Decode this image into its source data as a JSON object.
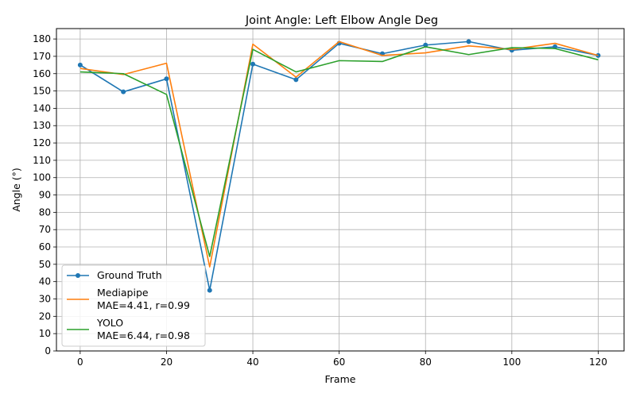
{
  "chart_data": {
    "type": "line",
    "title": "Joint Angle: Left Elbow Angle Deg",
    "xlabel": "Frame",
    "ylabel": "Angle (°)",
    "xlim": [
      -5.5,
      126
    ],
    "ylim": [
      0,
      186
    ],
    "xticks": [
      0,
      20,
      40,
      60,
      80,
      100,
      120
    ],
    "yticks": [
      0,
      10,
      20,
      30,
      40,
      50,
      60,
      70,
      80,
      90,
      100,
      110,
      120,
      130,
      140,
      150,
      160,
      170,
      180
    ],
    "grid": true,
    "legend_position": "lower-left",
    "x": [
      0,
      10,
      20,
      30,
      40,
      50,
      60,
      70,
      80,
      90,
      100,
      110,
      120
    ],
    "series": [
      {
        "name": "Ground Truth",
        "legend_lines": [
          "Ground Truth"
        ],
        "color": "#1f77b4",
        "marker": "circle",
        "values": [
          165,
          149.5,
          157,
          35,
          165.5,
          156.5,
          177.5,
          171.5,
          176.5,
          178.5,
          173.5,
          175.5,
          170.5
        ]
      },
      {
        "name": "Mediapipe\nMAE=4.41, r=0.99",
        "legend_lines": [
          "Mediapipe",
          "MAE=4.41, r=0.99"
        ],
        "color": "#ff7f0e",
        "marker": "none",
        "values": [
          163,
          159.5,
          166,
          48.5,
          177,
          158,
          178.5,
          170.5,
          172,
          176,
          174,
          177.5,
          170.5
        ]
      },
      {
        "name": "YOLO\nMAE=6.44, r=0.98",
        "legend_lines": [
          "YOLO",
          "MAE=6.44, r=0.98"
        ],
        "color": "#2ca02c",
        "marker": "none",
        "values": [
          161,
          160,
          148,
          54.5,
          174,
          161,
          167.5,
          167,
          175.5,
          171,
          175,
          174.5,
          168
        ]
      }
    ]
  }
}
